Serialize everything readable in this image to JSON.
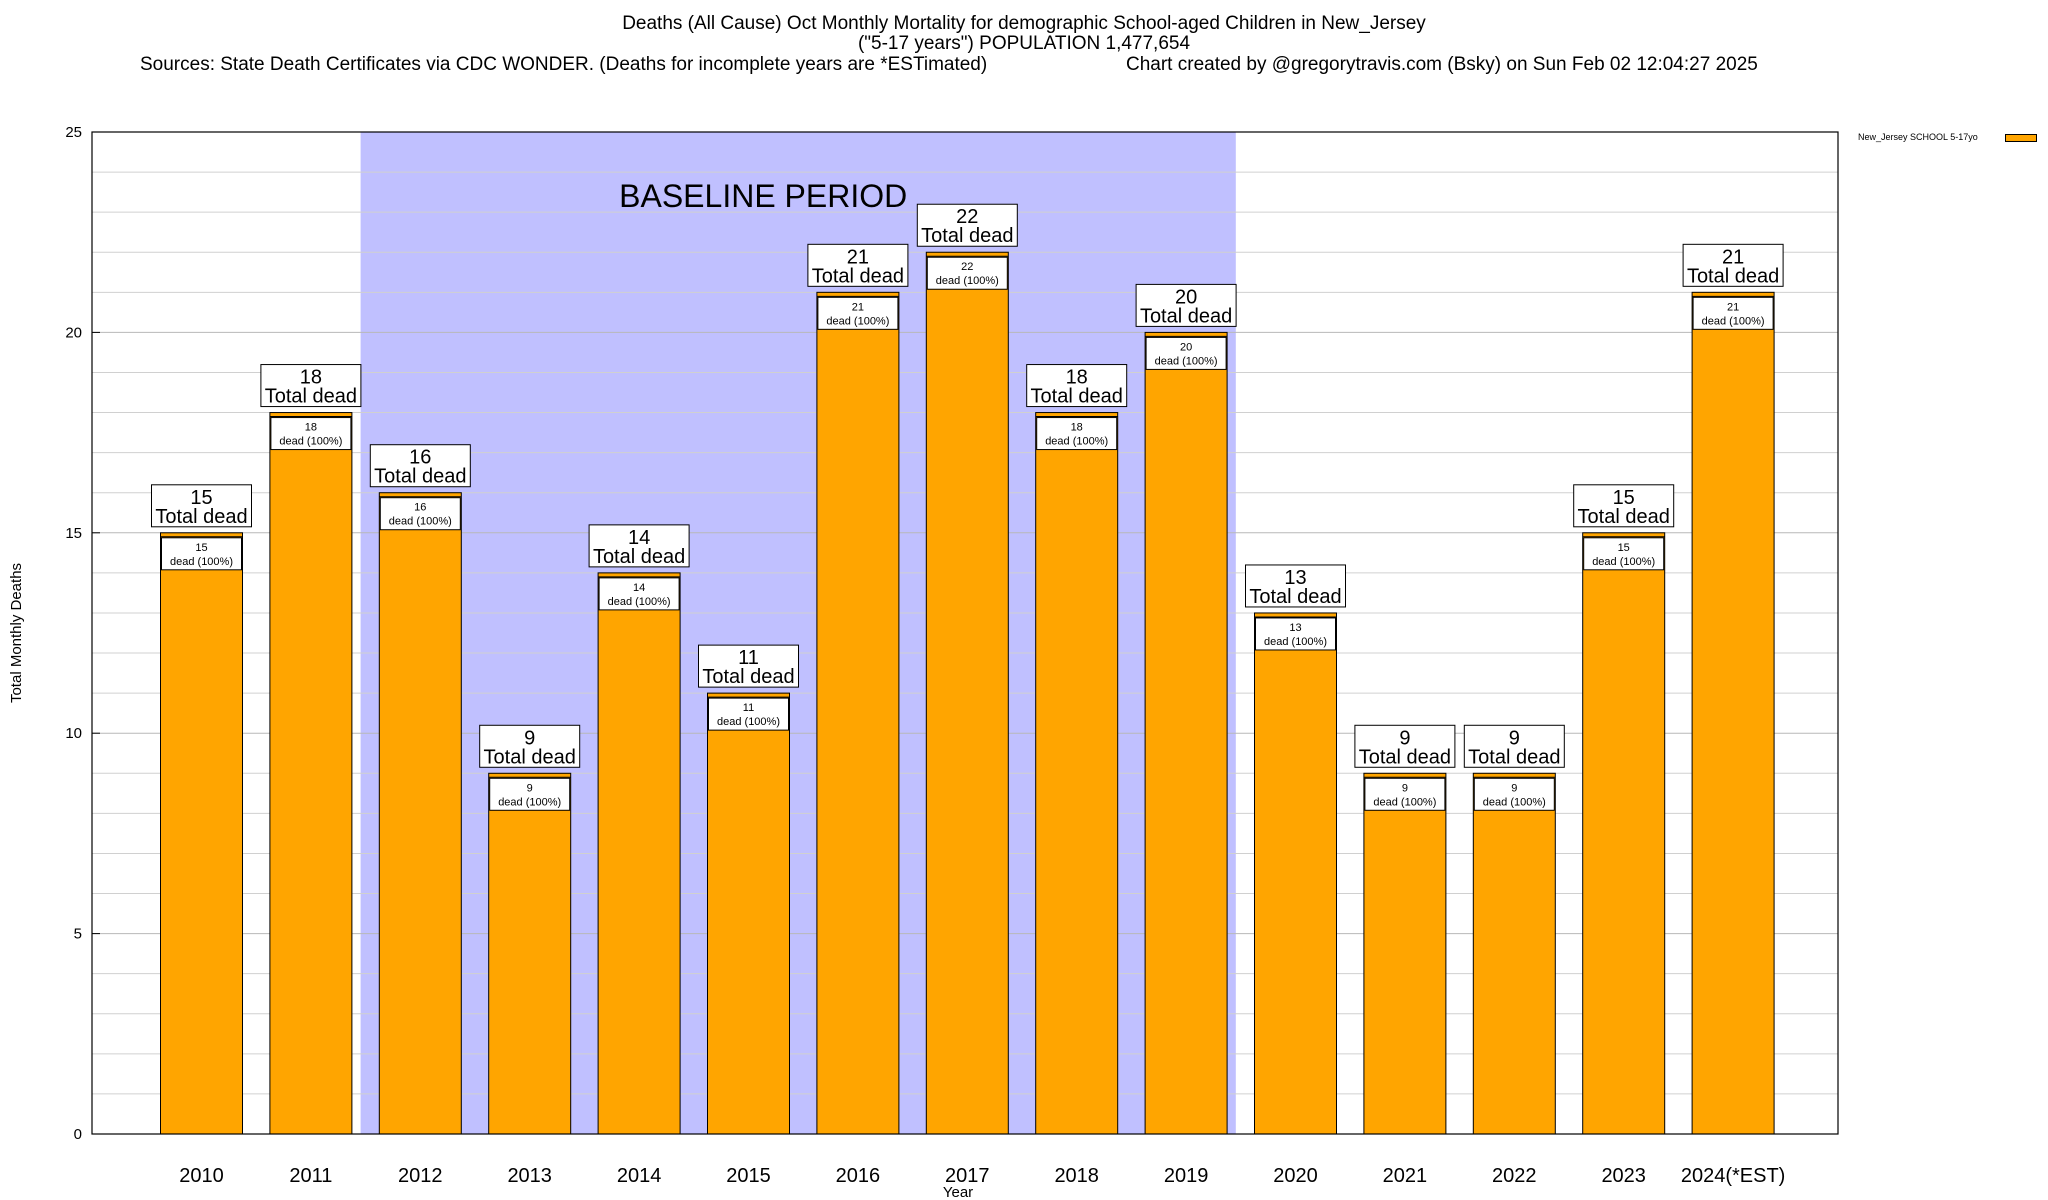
{
  "title": {
    "line1": "Deaths (All Cause) Oct Monthly Mortality for demographic School-aged Children in New_Jersey",
    "line2": "(\"5-17 years\") POPULATION 1,477,654",
    "sources": "Sources: State Death Certificates via CDC WONDER. (Deaths for incomplete years are *ESTimated)",
    "credit": "Chart created by @gregorytravis.com (Bsky) on Sun Feb 02 12:04:27 2025"
  },
  "legend": {
    "label": "New_Jersey SCHOOL 5-17yo",
    "color": "#ffa500"
  },
  "chart_data": {
    "type": "bar",
    "title": "Deaths (All Cause) Oct Monthly Mortality for demographic School-aged Children in New_Jersey",
    "xlabel": "Year",
    "ylabel": "Total Monthly Deaths",
    "ylim": [
      0,
      25
    ],
    "yticks": [
      0,
      5,
      10,
      15,
      20,
      25
    ],
    "grid": true,
    "legend_position": "top-right",
    "categories": [
      "2010",
      "2011",
      "2012",
      "2013",
      "2014",
      "2015",
      "2016",
      "2017",
      "2018",
      "2019",
      "2020",
      "2021",
      "2022",
      "2023",
      "2024(*EST)"
    ],
    "series": [
      {
        "name": "New_Jersey SCHOOL 5-17yo",
        "color": "#ffa500",
        "values": [
          15,
          18,
          16,
          9,
          14,
          11,
          21,
          22,
          18,
          20,
          13,
          9,
          9,
          15,
          21
        ]
      }
    ],
    "annotations": {
      "total_label_suffix": "Total dead",
      "inner_label_suffix": "dead (100%)",
      "baseline_period": {
        "label": "BASELINE PERIOD",
        "from": "2012",
        "to": "2019",
        "color": "#c0c0ff"
      }
    }
  }
}
